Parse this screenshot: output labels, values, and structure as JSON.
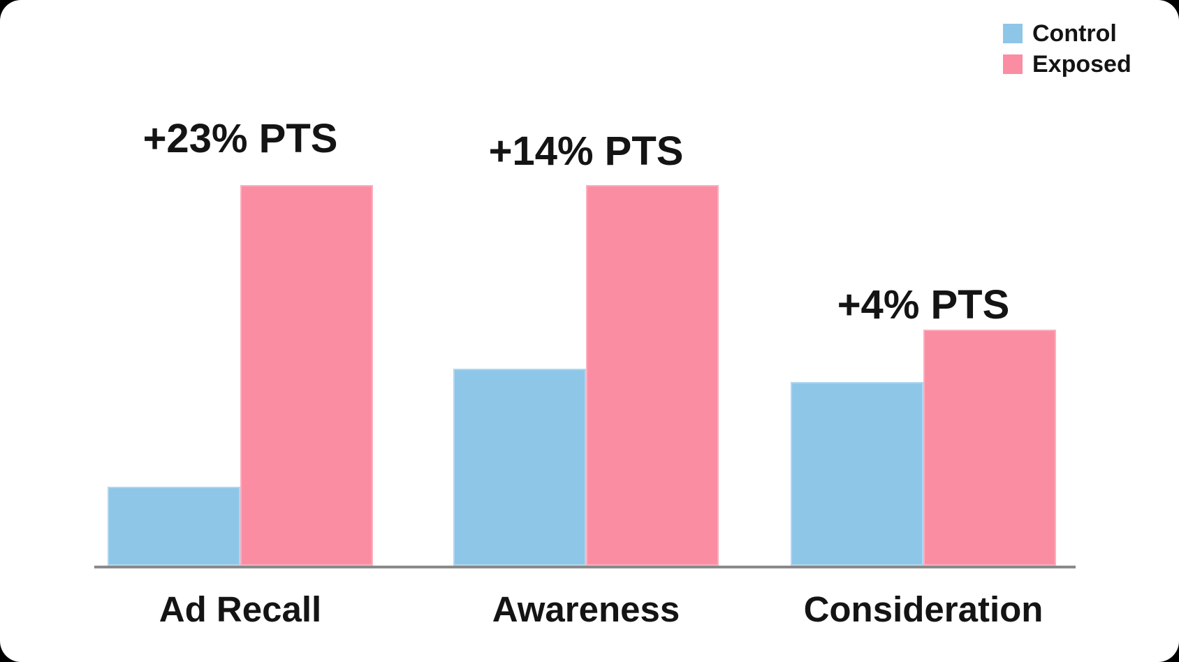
{
  "chart_data": {
    "type": "bar",
    "categories": [
      "Ad Recall",
      "Awareness",
      "Consideration"
    ],
    "series": [
      {
        "name": "Control",
        "color": "#8EC6E8",
        "values": [
          6,
          15,
          14
        ]
      },
      {
        "name": "Exposed",
        "color": "#FB8DA3",
        "values": [
          29,
          29,
          18
        ]
      }
    ],
    "annotations": [
      "+23% PTS",
      "+14% PTS",
      "+4% PTS"
    ],
    "title": "",
    "xlabel": "",
    "ylabel": "",
    "ylim": [
      0,
      32
    ],
    "grid": false,
    "legend_position": "top-right",
    "axis_color": "#8A8A8A",
    "text_color": "#141414"
  },
  "legend": {
    "items": [
      {
        "label": "Control",
        "color": "#8EC6E8"
      },
      {
        "label": "Exposed",
        "color": "#FB8DA3"
      }
    ]
  }
}
